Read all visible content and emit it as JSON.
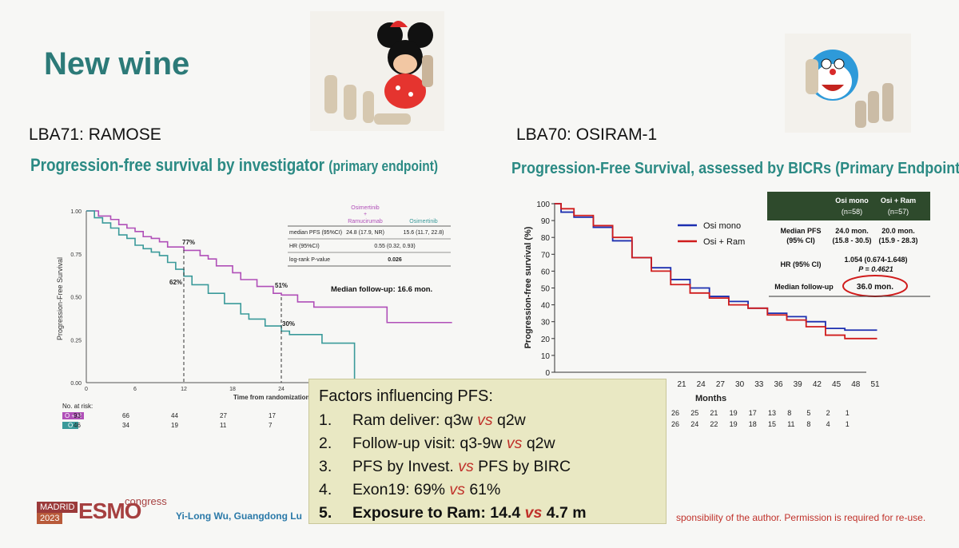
{
  "slide": {
    "title": "New wine",
    "left_study": "LBA71: RAMOSE",
    "right_study": "LBA70: OSIRAM-1",
    "left_chart_title": "Progression-free survival by investigator",
    "left_chart_title_suffix": "(primary endpoint)",
    "right_chart_title": "Progression-Free Survival, assessed by BICRs (Primary Endpoint)"
  },
  "left_chart": {
    "ylabel": "Progression-Free Survival",
    "xlabel": "Time from randomization [",
    "y_ticks": [
      "0.00",
      "0.25",
      "0.50",
      "0.75",
      "1.00"
    ],
    "x_ticks": [
      "0",
      "6",
      "12",
      "18",
      "24"
    ],
    "annotations": [
      "77%",
      "62%",
      "51%",
      "30%"
    ],
    "legend_col1": "Osimertinib + Ramucirumab",
    "legend_col1_a": "Osimertinib",
    "legend_col1_b": "+",
    "legend_col1_c": "Ramucirumab",
    "legend_col2": "Osimertinib",
    "rows": [
      {
        "label": "median PFS (95%CI)",
        "v1": "24.8 (17.9, NR)",
        "v2": "15.6 (11.7, 22.8)"
      },
      {
        "label": "HR (95%CI)",
        "v1": "0.55 (0.32, 0.93)",
        "v2": ""
      },
      {
        "label": "log-rank P-value",
        "v1": "0.026",
        "v2": ""
      }
    ],
    "followup": "Median follow-up: 16.6 mon.",
    "at_risk_label": "No. at risk:",
    "at_risk": [
      {
        "group": "O + R",
        "values": [
          "93",
          "66",
          "44",
          "27",
          "17"
        ]
      },
      {
        "group": "O",
        "values": [
          "46",
          "34",
          "19",
          "11",
          "7"
        ]
      }
    ],
    "colors": {
      "combo": "#b04fb8",
      "mono": "#3a9a9a"
    }
  },
  "right_chart": {
    "ylabel": "Progression-free survival (%)",
    "xlabel": "Months",
    "y_ticks": [
      "0",
      "10",
      "20",
      "30",
      "40",
      "50",
      "60",
      "70",
      "80",
      "90",
      "100"
    ],
    "x_ticks": [
      "21",
      "24",
      "27",
      "30",
      "33",
      "36",
      "39",
      "42",
      "45",
      "48",
      "51"
    ],
    "legend": [
      {
        "name": "Osi mono",
        "color": "#1c2fb0"
      },
      {
        "name": "Osi + Ram",
        "color": "#d01c1c"
      }
    ],
    "table_header": {
      "col1": "Osi mono",
      "col1_n": "(n=58)",
      "col2": "Osi + Ram",
      "col2_n": "(n=57)"
    },
    "median_pfs_label": "Median PFS",
    "median_pfs_label2": "(95% CI)",
    "median_pfs_v1": "24.0 mon.",
    "median_pfs_v1_ci": "(15.8 - 30.5)",
    "median_pfs_v2": "20.0 mon.",
    "median_pfs_v2_ci": "(15.9 - 28.3)",
    "hr_label": "HR (95% CI)",
    "hr_value": "1.054 (0.674-1.648)",
    "p_value": "P = 0.4621",
    "followup_label": "Median follow-up",
    "followup_value": "36.0 mon.",
    "at_risk_rows": [
      [
        "26",
        "25",
        "21",
        "19",
        "17",
        "13",
        "8",
        "5",
        "2",
        "1"
      ],
      [
        "26",
        "24",
        "22",
        "19",
        "18",
        "15",
        "11",
        "8",
        "4",
        "1"
      ]
    ]
  },
  "factors": {
    "heading": "Factors influencing PFS:",
    "items": [
      {
        "num": "1.",
        "a": "Ram deliver: q3w ",
        "vs": "vs",
        "b": " q2w"
      },
      {
        "num": "2.",
        "a": "Follow-up visit: q3-9w ",
        "vs": "vs",
        "b": " q2w"
      },
      {
        "num": "3.",
        "a": "PFS by Invest. ",
        "vs": "vs",
        "b": " PFS by BIRC"
      },
      {
        "num": "4.",
        "a": "Exon19: 69% ",
        "vs": "vs",
        "b": " 61%"
      },
      {
        "num": "5.",
        "a": "Exposure to Ram: 14.4 ",
        "vs": "vs",
        "b": " 4.7 m"
      }
    ]
  },
  "footer": {
    "city": "MADRID",
    "year": "2023",
    "brand": "ESMO",
    "brand_suffix": "congress",
    "credit": "Yi-Long Wu, Guangdong Lu",
    "disclaimer": "sponsibility of the author. Permission is required for re-use."
  }
}
